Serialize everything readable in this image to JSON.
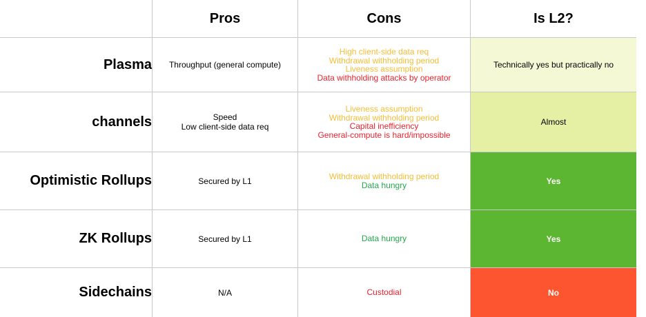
{
  "headers": {
    "corner": "",
    "pros": "Pros",
    "cons": "Cons",
    "is_l2": "Is L2?"
  },
  "colors": {
    "orange": "#f7bd36",
    "red": "#e8232e",
    "green": "#22a94c",
    "l2_pale": "#f5f8d5",
    "l2_light": "#e6f0a4",
    "l2_green": "#5db632",
    "l2_red": "#fe5531"
  },
  "rows": [
    {
      "name": "Plasma",
      "pros": [
        "Throughput (general compute)"
      ],
      "cons": [
        {
          "text": "High client-side data req",
          "color": "#f7bd36"
        },
        {
          "text": "Withdrawal withholding period",
          "color": "#f7bd36"
        },
        {
          "text": "Liveness assumption",
          "color": "#f7bd36"
        },
        {
          "text": "Data withholding attacks by operator",
          "color": "#e8232e"
        }
      ],
      "is_l2": "Technically yes but practically no",
      "l2_bg": "#f5f8d5",
      "l2_fg": "#000000"
    },
    {
      "name": "channels",
      "pros": [
        "Speed",
        "Low client-side data req"
      ],
      "cons": [
        {
          "text": "Liveness assumption",
          "color": "#f7bd36"
        },
        {
          "text": "Withdrawal withholding period",
          "color": "#f7bd36"
        },
        {
          "text": "Capital inefficiency",
          "color": "#e8232e"
        },
        {
          "text": "General-compute is hard/impossible",
          "color": "#e8232e"
        }
      ],
      "is_l2": "Almost",
      "l2_bg": "#e6f0a4",
      "l2_fg": "#000000"
    },
    {
      "name": "Optimistic Rollups",
      "pros": [
        "Secured by L1"
      ],
      "cons": [
        {
          "text": "Withdrawal withholding period",
          "color": "#f7bd36"
        },
        {
          "text": "Data hungry",
          "color": "#22a94c"
        }
      ],
      "is_l2": "Yes",
      "l2_bg": "#5db632",
      "l2_fg": "#ffffff"
    },
    {
      "name": "ZK Rollups",
      "pros": [
        "Secured by L1"
      ],
      "cons": [
        {
          "text": "Data hungry",
          "color": "#22a94c"
        }
      ],
      "is_l2": "Yes",
      "l2_bg": "#5db632",
      "l2_fg": "#ffffff"
    },
    {
      "name": "Sidechains",
      "pros": [
        "N/A"
      ],
      "cons": [
        {
          "text": "Custodial",
          "color": "#e8232e"
        }
      ],
      "is_l2": "No",
      "l2_bg": "#fe5531",
      "l2_fg": "#ffffff"
    }
  ]
}
